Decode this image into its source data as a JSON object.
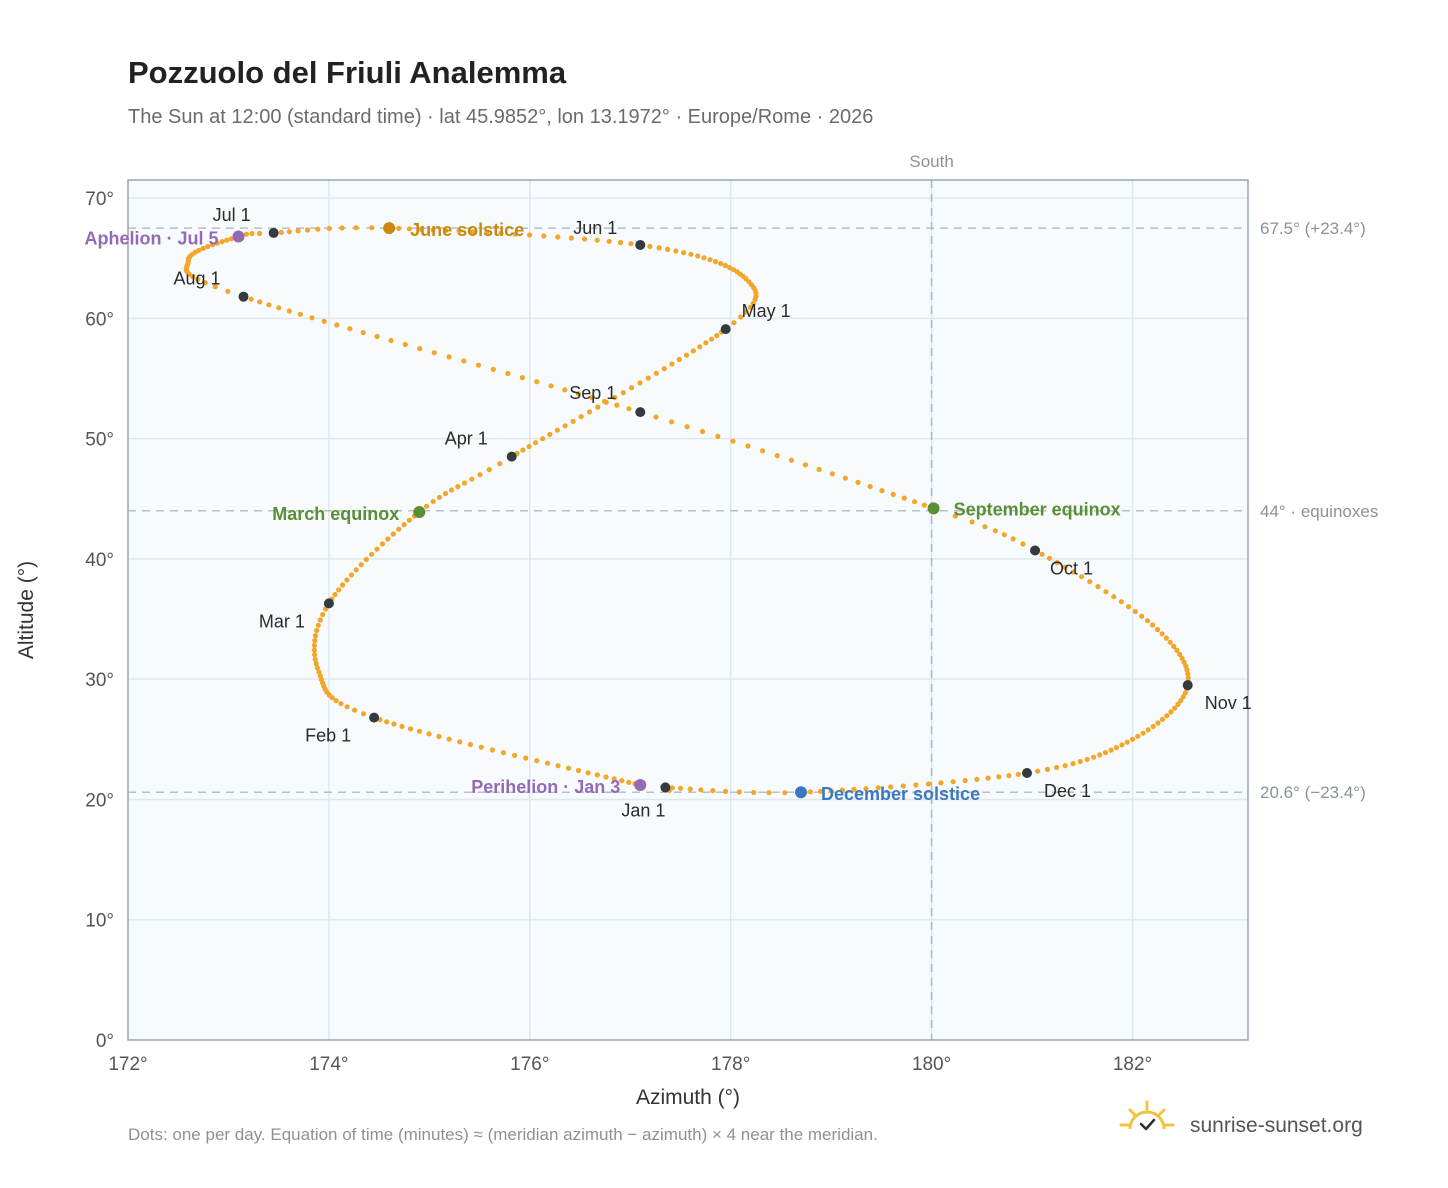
{
  "header": {
    "title": "Pozzuolo del Friuli Analemma",
    "subtitle": "The Sun at 12:00 (standard time) · lat 45.9852°, lon 13.1972° · Europe/Rome · 2026"
  },
  "footer": {
    "note": "Dots: one per day. Equation of time (minutes) ≈ (meridian azimuth − azimuth) × 4 near the meridian.",
    "brand": "sunrise-sunset.org"
  },
  "colors": {
    "path": "#f2a62a",
    "month_dot": "#333a40",
    "june_solstice": "#c98a10",
    "december_solstice": "#3a78c2",
    "equinox": "#5a8f34",
    "apsis": "#9469b5",
    "plot_bg": "#f8fbfd",
    "grid": "#e1e7ec",
    "frame": "#9aa5b0",
    "ref_line": "#b5c0c8"
  },
  "chart_data": {
    "type": "scatter",
    "title": "Pozzuolo del Friuli Analemma",
    "xlabel": "Azimuth (°)",
    "ylabel": "Altitude (°)",
    "xlim": [
      172,
      183.15
    ],
    "ylim": [
      0,
      71.5
    ],
    "x_ticks": [
      "172°",
      "174°",
      "176°",
      "178°",
      "180°",
      "182°"
    ],
    "x_tick_values": [
      172,
      174,
      176,
      178,
      180,
      182
    ],
    "y_ticks": [
      "0°",
      "10°",
      "20°",
      "30°",
      "40°",
      "50°",
      "60°",
      "70°"
    ],
    "y_tick_values": [
      0,
      10,
      20,
      30,
      40,
      50,
      60,
      70
    ],
    "grid": true,
    "path_keypoints": [
      {
        "doy": 1,
        "az": 177.35,
        "alt": 21.0
      },
      {
        "doy": 3,
        "az": 177.1,
        "alt": 21.2
      },
      {
        "doy": 32,
        "az": 174.45,
        "alt": 26.8
      },
      {
        "doy": 46,
        "az": 173.9,
        "alt": 30.6
      },
      {
        "doy": 60,
        "az": 174.0,
        "alt": 36.3
      },
      {
        "doy": 79,
        "az": 174.9,
        "alt": 43.9
      },
      {
        "doy": 91,
        "az": 175.82,
        "alt": 48.5
      },
      {
        "doy": 121,
        "az": 177.95,
        "alt": 59.1
      },
      {
        "doy": 134,
        "az": 178.15,
        "alt": 63.3
      },
      {
        "doy": 152,
        "az": 177.1,
        "alt": 66.1
      },
      {
        "doy": 172,
        "az": 174.6,
        "alt": 67.5
      },
      {
        "doy": 182,
        "az": 173.45,
        "alt": 67.1
      },
      {
        "doy": 186,
        "az": 173.1,
        "alt": 66.8
      },
      {
        "doy": 200,
        "az": 172.6,
        "alt": 64.8
      },
      {
        "doy": 213,
        "az": 173.15,
        "alt": 61.8
      },
      {
        "doy": 244,
        "az": 177.1,
        "alt": 52.2
      },
      {
        "doy": 266,
        "az": 180.02,
        "alt": 44.2
      },
      {
        "doy": 274,
        "az": 181.03,
        "alt": 40.7
      },
      {
        "doy": 290,
        "az": 182.2,
        "alt": 34.5
      },
      {
        "doy": 305,
        "az": 182.55,
        "alt": 29.5
      },
      {
        "doy": 320,
        "az": 182.0,
        "alt": 25.0
      },
      {
        "doy": 335,
        "az": 180.95,
        "alt": 22.2
      },
      {
        "doy": 355,
        "az": 178.7,
        "alt": 20.6
      },
      {
        "doy": 366,
        "az": 177.35,
        "alt": 21.0
      }
    ],
    "month_markers": [
      {
        "label": "Jan 1",
        "az": 177.35,
        "alt": 21.0
      },
      {
        "label": "Feb 1",
        "az": 174.45,
        "alt": 26.8
      },
      {
        "label": "Mar 1",
        "az": 174.0,
        "alt": 36.3
      },
      {
        "label": "Apr 1",
        "az": 175.82,
        "alt": 48.5
      },
      {
        "label": "May 1",
        "az": 177.95,
        "alt": 59.1
      },
      {
        "label": "Jun 1",
        "az": 177.1,
        "alt": 66.1
      },
      {
        "label": "Jul 1",
        "az": 173.45,
        "alt": 67.1
      },
      {
        "label": "Aug 1",
        "az": 173.15,
        "alt": 61.8
      },
      {
        "label": "Sep 1",
        "az": 177.1,
        "alt": 52.2
      },
      {
        "label": "Oct 1",
        "az": 181.03,
        "alt": 40.7
      },
      {
        "label": "Nov 1",
        "az": 182.55,
        "alt": 29.5
      },
      {
        "label": "Dec 1",
        "az": 180.95,
        "alt": 22.2
      }
    ],
    "events": [
      {
        "label": "June solstice",
        "az": 174.6,
        "alt": 67.5,
        "color": "#c98a10"
      },
      {
        "label": "December solstice",
        "az": 178.7,
        "alt": 20.6,
        "color": "#3a78c2"
      },
      {
        "label": "March equinox",
        "az": 174.9,
        "alt": 43.9,
        "color": "#5a8f34"
      },
      {
        "label": "September equinox",
        "az": 180.02,
        "alt": 44.2,
        "color": "#5a8f34"
      },
      {
        "label": "Aphelion · Jul 5",
        "az": 173.1,
        "alt": 66.8,
        "color": "#9469b5"
      },
      {
        "label": "Perihelion · Jan 3",
        "az": 177.1,
        "alt": 21.2,
        "color": "#9469b5"
      }
    ],
    "reference_lines": {
      "horizontal": [
        {
          "alt": 67.5,
          "label": "67.5° (+23.4°)"
        },
        {
          "alt": 44.0,
          "label": "44° · equinoxes"
        },
        {
          "alt": 20.6,
          "label": "20.6° (−23.4°)"
        }
      ],
      "vertical": [
        {
          "az": 180,
          "label": "South"
        }
      ]
    }
  }
}
